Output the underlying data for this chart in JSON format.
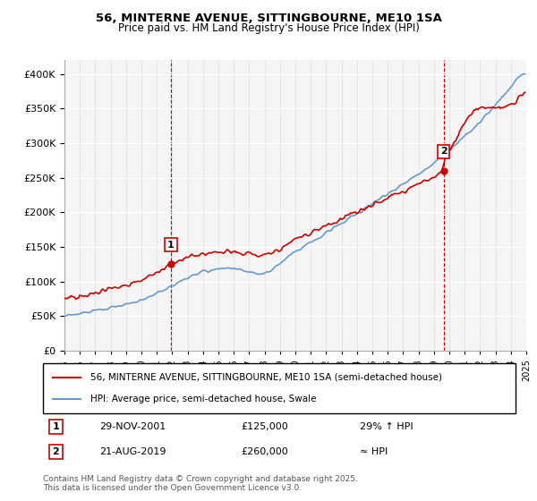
{
  "title1": "56, MINTERNE AVENUE, SITTINGBOURNE, ME10 1SA",
  "title2": "Price paid vs. HM Land Registry's House Price Index (HPI)",
  "ylabel_vals": [
    "£0",
    "£50K",
    "£100K",
    "£150K",
    "£200K",
    "£250K",
    "£300K",
    "£350K",
    "£400K"
  ],
  "ylim": [
    0,
    420000
  ],
  "yticks": [
    0,
    50000,
    100000,
    150000,
    200000,
    250000,
    300000,
    350000,
    400000
  ],
  "sale1_date": "29-NOV-2001",
  "sale1_price": 125000,
  "sale1_label": "29% ↑ HPI",
  "sale2_date": "21-AUG-2019",
  "sale2_price": 260000,
  "sale2_label": "≈ HPI",
  "legend_line1": "56, MINTERNE AVENUE, SITTINGBOURNE, ME10 1SA (semi-detached house)",
  "legend_line2": "HPI: Average price, semi-detached house, Swale",
  "footnote": "Contains HM Land Registry data © Crown copyright and database right 2025.\nThis data is licensed under the Open Government Licence v3.0.",
  "line_color_red": "#cc0000",
  "line_color_blue": "#6699cc",
  "marker1_color": "#cc0000",
  "dashed_color": "#cc0000",
  "background_color": "#f5f5f5",
  "grid_color": "#ffffff"
}
